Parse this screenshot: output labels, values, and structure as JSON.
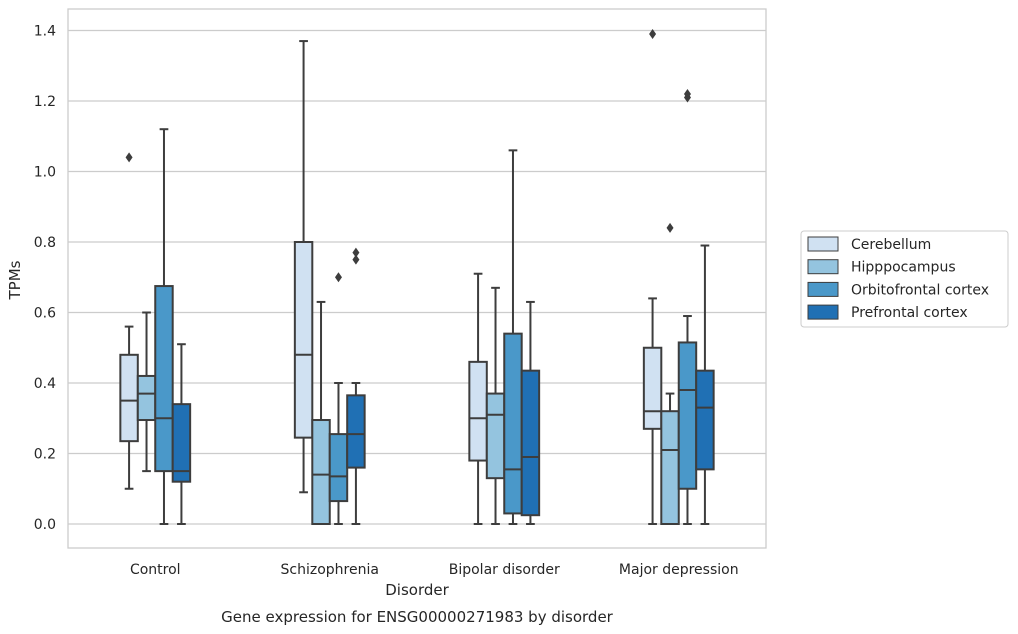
{
  "chart_data": {
    "type": "box",
    "title": "",
    "caption": "Gene expression for ENSG00000271983 by disorder",
    "xlabel": "Disorder",
    "ylabel": "TPMs",
    "ylim": [
      -0.065,
      1.46
    ],
    "yticks": [
      0.0,
      0.2,
      0.4,
      0.6,
      0.8,
      1.0,
      1.2,
      1.4
    ],
    "ytick_labels": [
      "0.0",
      "0.2",
      "0.4",
      "0.6",
      "0.8",
      "1.0",
      "1.2",
      "1.4"
    ],
    "grid": "horizontal",
    "legend_position": "right",
    "categories": [
      "Control",
      "Schizophrenia",
      "Bipolar disorder",
      "Major depression"
    ],
    "series": [
      {
        "name": "Cerebellum",
        "color": "#d0e1f2",
        "boxes": [
          {
            "whislo": 0.1,
            "q1": 0.235,
            "med": 0.35,
            "q3": 0.48,
            "whishi": 0.56,
            "fliers": [
              1.04
            ]
          },
          {
            "whislo": 0.09,
            "q1": 0.245,
            "med": 0.48,
            "q3": 0.8,
            "whishi": 1.37,
            "fliers": []
          },
          {
            "whislo": 0.0,
            "q1": 0.18,
            "med": 0.3,
            "q3": 0.46,
            "whishi": 0.71,
            "fliers": []
          },
          {
            "whislo": 0.0,
            "q1": 0.27,
            "med": 0.32,
            "q3": 0.5,
            "whishi": 0.64,
            "fliers": [
              1.39
            ]
          }
        ]
      },
      {
        "name": "Hipppocampus",
        "color": "#94c4df",
        "boxes": [
          {
            "whislo": 0.15,
            "q1": 0.295,
            "med": 0.37,
            "q3": 0.42,
            "whishi": 0.6,
            "fliers": []
          },
          {
            "whislo": 0.0,
            "q1": 0.0,
            "med": 0.14,
            "q3": 0.295,
            "whishi": 0.63,
            "fliers": []
          },
          {
            "whislo": 0.0,
            "q1": 0.13,
            "med": 0.31,
            "q3": 0.37,
            "whishi": 0.67,
            "fliers": []
          },
          {
            "whislo": 0.0,
            "q1": 0.0,
            "med": 0.21,
            "q3": 0.32,
            "whishi": 0.37,
            "fliers": [
              0.84
            ]
          }
        ]
      },
      {
        "name": "Orbitofrontal cortex",
        "color": "#4a98c9",
        "boxes": [
          {
            "whislo": 0.0,
            "q1": 0.15,
            "med": 0.3,
            "q3": 0.675,
            "whishi": 1.12,
            "fliers": []
          },
          {
            "whislo": 0.0,
            "q1": 0.065,
            "med": 0.135,
            "q3": 0.255,
            "whishi": 0.4,
            "fliers": [
              0.7
            ]
          },
          {
            "whislo": 0.0,
            "q1": 0.03,
            "med": 0.155,
            "q3": 0.54,
            "whishi": 1.06,
            "fliers": []
          },
          {
            "whislo": 0.0,
            "q1": 0.1,
            "med": 0.38,
            "q3": 0.515,
            "whishi": 0.59,
            "fliers": [
              1.21,
              1.22
            ]
          }
        ]
      },
      {
        "name": "Prefrontal cortex",
        "color": "#2070b4",
        "boxes": [
          {
            "whislo": 0.0,
            "q1": 0.12,
            "med": 0.15,
            "q3": 0.34,
            "whishi": 0.51,
            "fliers": []
          },
          {
            "whislo": 0.0,
            "q1": 0.16,
            "med": 0.255,
            "q3": 0.365,
            "whishi": 0.4,
            "fliers": [
              0.75,
              0.77
            ]
          },
          {
            "whislo": 0.0,
            "q1": 0.025,
            "med": 0.19,
            "q3": 0.435,
            "whishi": 0.63,
            "fliers": []
          },
          {
            "whislo": 0.0,
            "q1": 0.155,
            "med": 0.33,
            "q3": 0.435,
            "whishi": 0.79,
            "fliers": []
          }
        ]
      }
    ],
    "colors": {
      "box_edge": "#3d3d3d",
      "grid": "#cccccc",
      "frame": "#cccccc",
      "text": "#262626"
    }
  }
}
